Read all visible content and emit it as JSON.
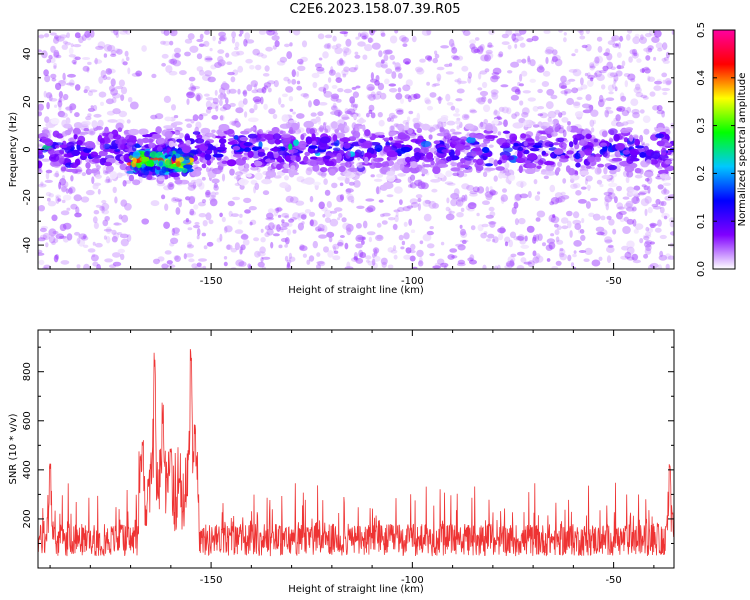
{
  "title": "C2E6.2023.158.07.39.R05",
  "chart_data": [
    {
      "type": "heatmap",
      "xlabel": "Height of straight line (km)",
      "ylabel": "Frequency (Hz)",
      "xlim": [
        -193,
        -35
      ],
      "ylim": [
        -50,
        50
      ],
      "xticks": [
        -150,
        -100,
        -50
      ],
      "xtick_labels": [
        "-150",
        "-100",
        "-50"
      ],
      "yticks": [
        -40,
        -20,
        0,
        20,
        40
      ],
      "ytick_labels": [
        "-40",
        "-20",
        "0",
        "20",
        "40"
      ],
      "colorbar": {
        "label": "Normalized spectral amplitude",
        "range": [
          0,
          0.5
        ],
        "ticks": [
          0,
          0.1,
          0.2,
          0.3,
          0.4,
          0.5
        ],
        "tick_labels": [
          "0.0",
          "0.1",
          "0.2",
          "0.3",
          "0.4",
          "0.5"
        ],
        "colormap": [
          "#ffffff",
          "#8000ff",
          "#0000ff",
          "#00c8ff",
          "#00ff00",
          "#ffff00",
          "#ff0000",
          "#ff00a0"
        ]
      },
      "bands": [
        {
          "x_from": -193,
          "x_to": -35,
          "center_freq": 0,
          "half_width": 10,
          "level": 0.12
        },
        {
          "x_from": -170,
          "x_to": -155,
          "center_freq": -5,
          "half_width": 6,
          "level": 0.4
        }
      ],
      "gaps": [
        {
          "x_from": -170,
          "x_to": -162
        },
        {
          "x_from": -158,
          "x_to": -156
        }
      ],
      "grid": false
    },
    {
      "type": "line",
      "xlabel": "Height of straight line (km)",
      "ylabel": "SNR (10 * v/v)",
      "xlim": [
        -193,
        -35
      ],
      "ylim": [
        0,
        970
      ],
      "xticks": [
        -150,
        -100,
        -50
      ],
      "xtick_labels": [
        "-150",
        "-100",
        "-50"
      ],
      "yticks": [
        200,
        400,
        600,
        800
      ],
      "ytick_labels": [
        "200",
        "400",
        "600",
        "800"
      ],
      "color": "#ee3333",
      "series_summary": {
        "baseline": 120,
        "noise_peak": 300
      },
      "peaks": [
        {
          "x": -190,
          "y": 470
        },
        {
          "x": -167,
          "y": 560
        },
        {
          "x": -164,
          "y": 880
        },
        {
          "x": -162,
          "y": 680
        },
        {
          "x": -160,
          "y": 500
        },
        {
          "x": -158,
          "y": 350
        },
        {
          "x": -155,
          "y": 960
        },
        {
          "x": -154,
          "y": 640
        },
        {
          "x": -36,
          "y": 460
        }
      ],
      "grid": false
    }
  ]
}
